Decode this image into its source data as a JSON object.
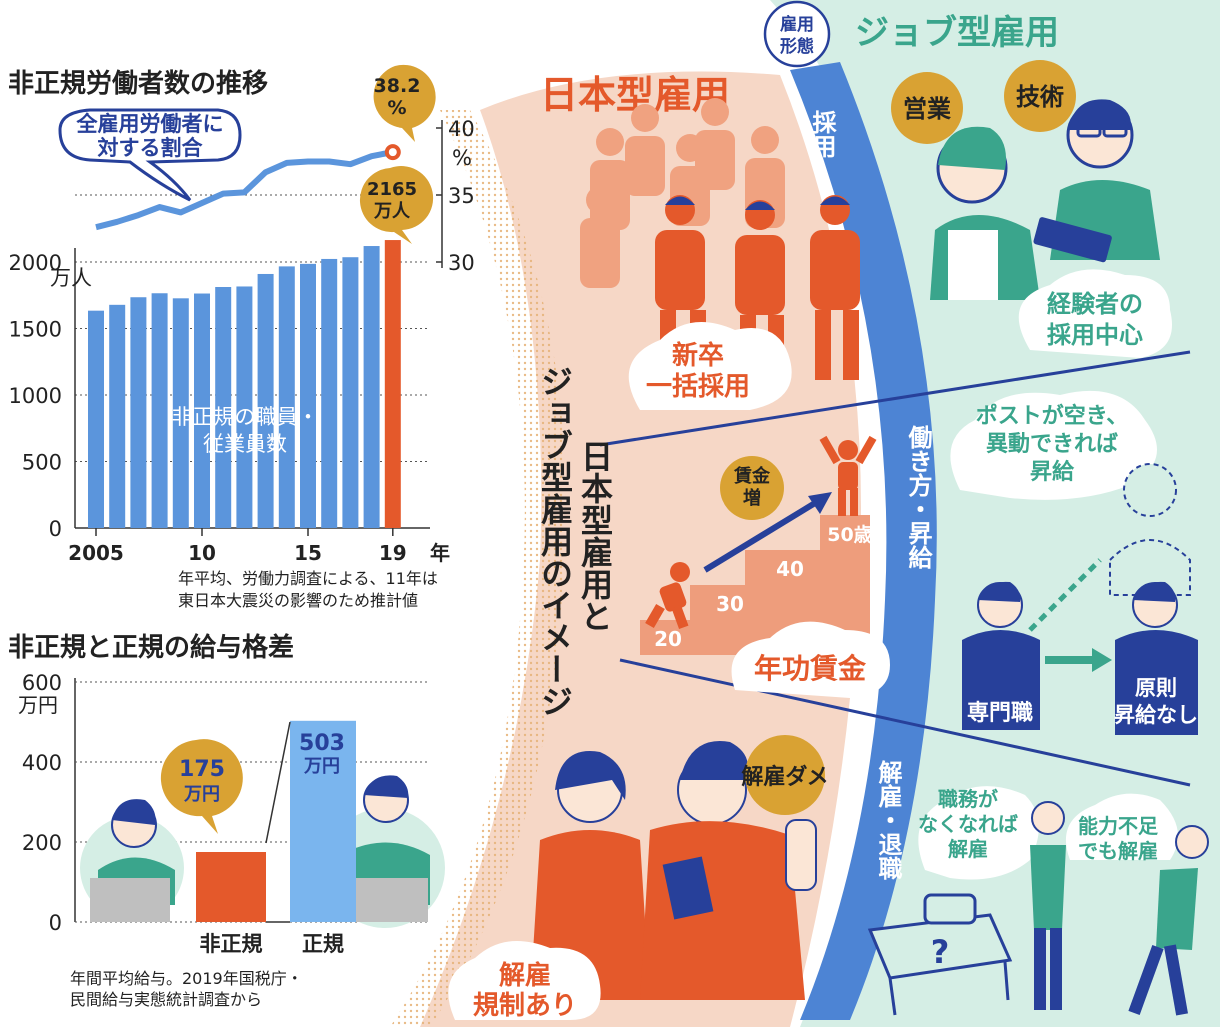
{
  "colors": {
    "blue_bar": "#5b95dc",
    "orange": "#e4592b",
    "light_blue_bar": "#7ab5ee",
    "navy": "#27409a",
    "teal": "#3aa58c",
    "gold": "#d9a233",
    "peach_bg": "#f6d7c6",
    "mint_bg": "#d5eee5",
    "band_blue": "#4d84d4"
  },
  "chart1": {
    "title": "非正規労働者数の推移",
    "ratio_callout_line1": "全雇用労働者に",
    "ratio_callout_line2": "対する割合",
    "ratio_badge_line1": "38.2",
    "ratio_badge_line2": "%",
    "count_badge_line1": "2165",
    "count_badge_line2": "万人",
    "bar_label_line1": "非正規の職員・",
    "bar_label_line2": "従業員数",
    "left_unit": "万人",
    "right_unit": "%",
    "year_suffix": "年",
    "note_line1": "年平均、労働力調査による、11年は",
    "note_line2": "東日本大震災の影響のため推計値"
  },
  "chart2": {
    "title": "非正規と正規の給与格差",
    "unit": "万円",
    "value1_line1": "175",
    "value1_line2": "万円",
    "value2_line1": "503",
    "value2_line2": "万円",
    "note_line1": "年間平均給与。2019年国税庁・",
    "note_line2": "民間給与実態統計調査から"
  },
  "chart_data": [
    {
      "type": "bar",
      "title": "非正規労働者数の推移",
      "series": [
        {
          "name": "非正規の職員・従業員数",
          "unit": "万人",
          "x": [
            2005,
            2006,
            2007,
            2008,
            2009,
            2010,
            2011,
            2012,
            2013,
            2014,
            2015,
            2016,
            2017,
            2018,
            2019
          ],
          "values": [
            1634,
            1678,
            1735,
            1765,
            1727,
            1763,
            1812,
            1816,
            1910,
            1967,
            1986,
            2023,
            2036,
            2120,
            2165
          ]
        },
        {
          "name": "全雇用労働者に対する割合",
          "type": "line",
          "unit": "%",
          "x": [
            2005,
            2006,
            2007,
            2008,
            2009,
            2010,
            2011,
            2012,
            2013,
            2014,
            2015,
            2016,
            2017,
            2018,
            2019
          ],
          "values": [
            32.6,
            33.0,
            33.5,
            34.1,
            33.7,
            34.4,
            35.1,
            35.2,
            36.7,
            37.4,
            37.5,
            37.5,
            37.3,
            37.9,
            38.2
          ]
        }
      ],
      "xticks": [
        "2005",
        "10",
        "15",
        "19"
      ],
      "yticks_left": [
        "0",
        "500",
        "1000",
        "1500",
        "2000"
      ],
      "yticks_right": [
        "30",
        "35",
        "40"
      ],
      "ylim_left": [
        0,
        2000
      ],
      "ylim_right": [
        30,
        40
      ],
      "grid": true
    },
    {
      "type": "bar",
      "title": "非正規と正規の給与格差",
      "categories": [
        "非正規",
        "正規"
      ],
      "values": [
        175,
        503
      ],
      "unit": "万円",
      "yticks": [
        "0",
        "200",
        "400",
        "600"
      ],
      "ylim": [
        0,
        600
      ],
      "grid": true
    }
  ],
  "panel": {
    "vertical_title_line1": "日本型雇用と",
    "vertical_title_line2": "ジョブ型雇用のイメージ",
    "japan_title": "日本型雇用",
    "job_title": "ジョブ型雇用",
    "employment_form_line1": "雇用",
    "employment_form_line2": "形態",
    "band_hiring": "採用",
    "band_work": "働き方・昇給",
    "band_dismiss": "解雇・退職",
    "hiring_japan_line1": "新卒",
    "hiring_japan_line2": "一括採用",
    "hiring_job_line1": "経験者の",
    "hiring_job_line2": "採用中心",
    "skill_sales": "営業",
    "skill_tech": "技術",
    "wage_badge_line1": "賃金",
    "wage_badge_line2": "増",
    "steps": [
      "20",
      "30",
      "40",
      "50歳"
    ],
    "seniority_wage": "年功賃金",
    "post_line1": "ポストが空き、",
    "post_line2": "異動できれば",
    "post_line3": "昇給",
    "specialist": "専門職",
    "no_raise_line1": "原則",
    "no_raise_line2": "昇給なし",
    "no_firing": "解雇ダメ",
    "dismissal_regulation_line1": "解雇",
    "dismissal_regulation_line2": "規制あり",
    "duty_line1": "職務が",
    "duty_line2": "なくなれば",
    "duty_line3": "解雇",
    "ability_line1": "能力不足",
    "ability_line2": "でも解雇",
    "question_mark": "?"
  }
}
